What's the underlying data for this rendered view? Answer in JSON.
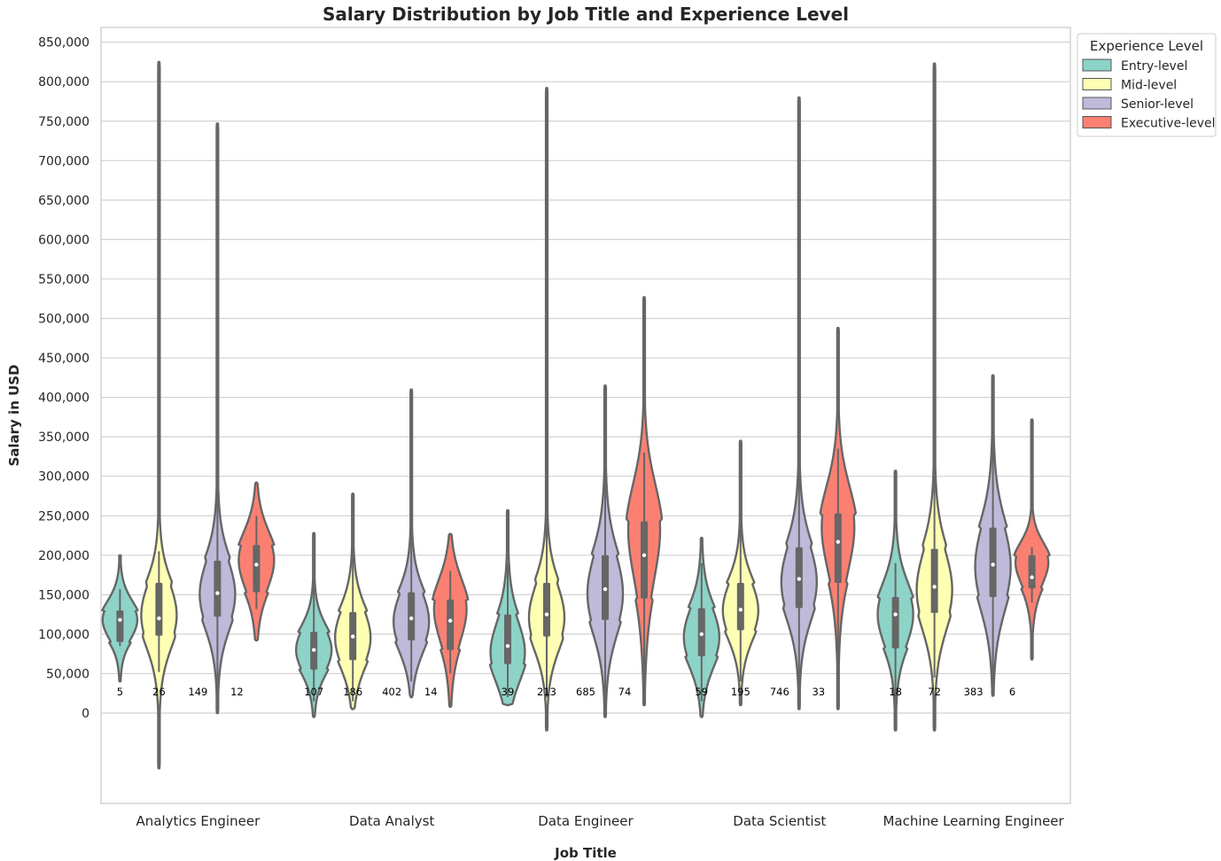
{
  "chart_data": {
    "type": "violin",
    "title": "Salary Distribution by Job Title and Experience Level",
    "xlabel": "Job Title",
    "ylabel": "Salary in USD",
    "ylim": [
      -115000,
      870000
    ],
    "yticks": [
      0,
      50000,
      100000,
      150000,
      200000,
      250000,
      300000,
      350000,
      400000,
      450000,
      500000,
      550000,
      600000,
      650000,
      700000,
      750000,
      800000,
      850000
    ],
    "ytick_labels": [
      "0",
      "50,000",
      "100,000",
      "150,000",
      "200,000",
      "250,000",
      "300,000",
      "350,000",
      "400,000",
      "450,000",
      "500,000",
      "550,000",
      "600,000",
      "650,000",
      "700,000",
      "750,000",
      "800,000",
      "850,000"
    ],
    "categories": [
      "Analytics Engineer",
      "Data Analyst",
      "Data Engineer",
      "Data Scientist",
      "Machine Learning Engineer"
    ],
    "grid": "horizontal",
    "legend": {
      "title": "Experience Level",
      "position": "upper-right-outside",
      "entries": [
        "Entry-level",
        "Mid-level",
        "Senior-level",
        "Executive-level"
      ]
    },
    "series": [
      {
        "name": "Entry-level",
        "color": "#8dd3c7",
        "stats": [
          {
            "min": 40000,
            "q1": 90000,
            "median": 118000,
            "q3": 130000,
            "max": 200000,
            "wlo": 85000,
            "whi": 157000,
            "mode": 118000,
            "count": "5"
          },
          {
            "min": -5000,
            "q1": 55000,
            "median": 80000,
            "q3": 103000,
            "max": 228000,
            "wlo": 15000,
            "whi": 180000,
            "mode": 80000,
            "count": "107"
          },
          {
            "min": 10000,
            "q1": 62000,
            "median": 85000,
            "q3": 125000,
            "max": 257000,
            "wlo": 20000,
            "whi": 190000,
            "mode": 75000,
            "count": "39"
          },
          {
            "min": -5000,
            "q1": 72000,
            "median": 100000,
            "q3": 133000,
            "max": 222000,
            "wlo": 15000,
            "whi": 190000,
            "mode": 95000,
            "count": "59"
          },
          {
            "min": -22000,
            "q1": 82000,
            "median": 125000,
            "q3": 147000,
            "max": 307000,
            "wlo": 15000,
            "whi": 190000,
            "mode": 125000,
            "count": "18"
          }
        ]
      },
      {
        "name": "Mid-level",
        "color": "#ffffb3",
        "stats": [
          {
            "min": -70000,
            "q1": 98000,
            "median": 120000,
            "q3": 165000,
            "max": 825000,
            "wlo": 52000,
            "whi": 205000,
            "mode": 125000,
            "count": "26"
          },
          {
            "min": 5000,
            "q1": 67000,
            "median": 97000,
            "q3": 128000,
            "max": 278000,
            "wlo": 15000,
            "whi": 215000,
            "mode": 95000,
            "count": "186"
          },
          {
            "min": -22000,
            "q1": 97000,
            "median": 125000,
            "q3": 165000,
            "max": 792000,
            "wlo": 20000,
            "whi": 265000,
            "mode": 120000,
            "count": "213"
          },
          {
            "min": 10000,
            "q1": 105000,
            "median": 131000,
            "q3": 165000,
            "max": 345000,
            "wlo": 40000,
            "whi": 245000,
            "mode": 130000,
            "count": "195"
          },
          {
            "min": -22000,
            "q1": 127000,
            "median": 160000,
            "q3": 208000,
            "max": 823000,
            "wlo": 45000,
            "whi": 300000,
            "mode": 155000,
            "count": "72"
          }
        ]
      },
      {
        "name": "Senior-level",
        "color": "#bebada",
        "stats": [
          {
            "min": 0,
            "q1": 122000,
            "median": 152000,
            "q3": 193000,
            "max": 747000,
            "wlo": 15000,
            "whi": 300000,
            "mode": 150000,
            "count": "149"
          },
          {
            "min": 20000,
            "q1": 92000,
            "median": 120000,
            "q3": 153000,
            "max": 410000,
            "wlo": 40000,
            "whi": 240000,
            "mode": 115000,
            "count": "402"
          },
          {
            "min": -5000,
            "q1": 118000,
            "median": 157000,
            "q3": 200000,
            "max": 415000,
            "wlo": 15000,
            "whi": 320000,
            "mode": 150000,
            "count": "685"
          },
          {
            "min": 5000,
            "q1": 133000,
            "median": 170000,
            "q3": 210000,
            "max": 780000,
            "wlo": 20000,
            "whi": 325000,
            "mode": 165000,
            "count": "746"
          },
          {
            "min": 22000,
            "q1": 147000,
            "median": 188000,
            "q3": 235000,
            "max": 428000,
            "wlo": 30000,
            "whi": 360000,
            "mode": 185000,
            "count": "383"
          }
        ]
      },
      {
        "name": "Executive-level",
        "color": "#fb8072",
        "stats": [
          {
            "min": 92000,
            "q1": 153000,
            "median": 188000,
            "q3": 213000,
            "max": 292000,
            "wlo": 132000,
            "whi": 250000,
            "mode": 195000,
            "count": "12"
          },
          {
            "min": 8000,
            "q1": 80000,
            "median": 117000,
            "q3": 144000,
            "max": 227000,
            "wlo": 50000,
            "whi": 180000,
            "mode": 135000,
            "count": "14"
          },
          {
            "min": 10000,
            "q1": 145000,
            "median": 200000,
            "q3": 243000,
            "max": 527000,
            "wlo": 40000,
            "whi": 330000,
            "mode": 240000,
            "count": "74"
          },
          {
            "min": 5000,
            "q1": 165000,
            "median": 217000,
            "q3": 253000,
            "max": 488000,
            "wlo": 70000,
            "whi": 335000,
            "mode": 240000,
            "count": "33"
          },
          {
            "min": 68000,
            "q1": 158000,
            "median": 172000,
            "q3": 200000,
            "max": 372000,
            "wlo": 140000,
            "whi": 210000,
            "mode": 195000,
            "count": "6"
          }
        ]
      }
    ]
  }
}
